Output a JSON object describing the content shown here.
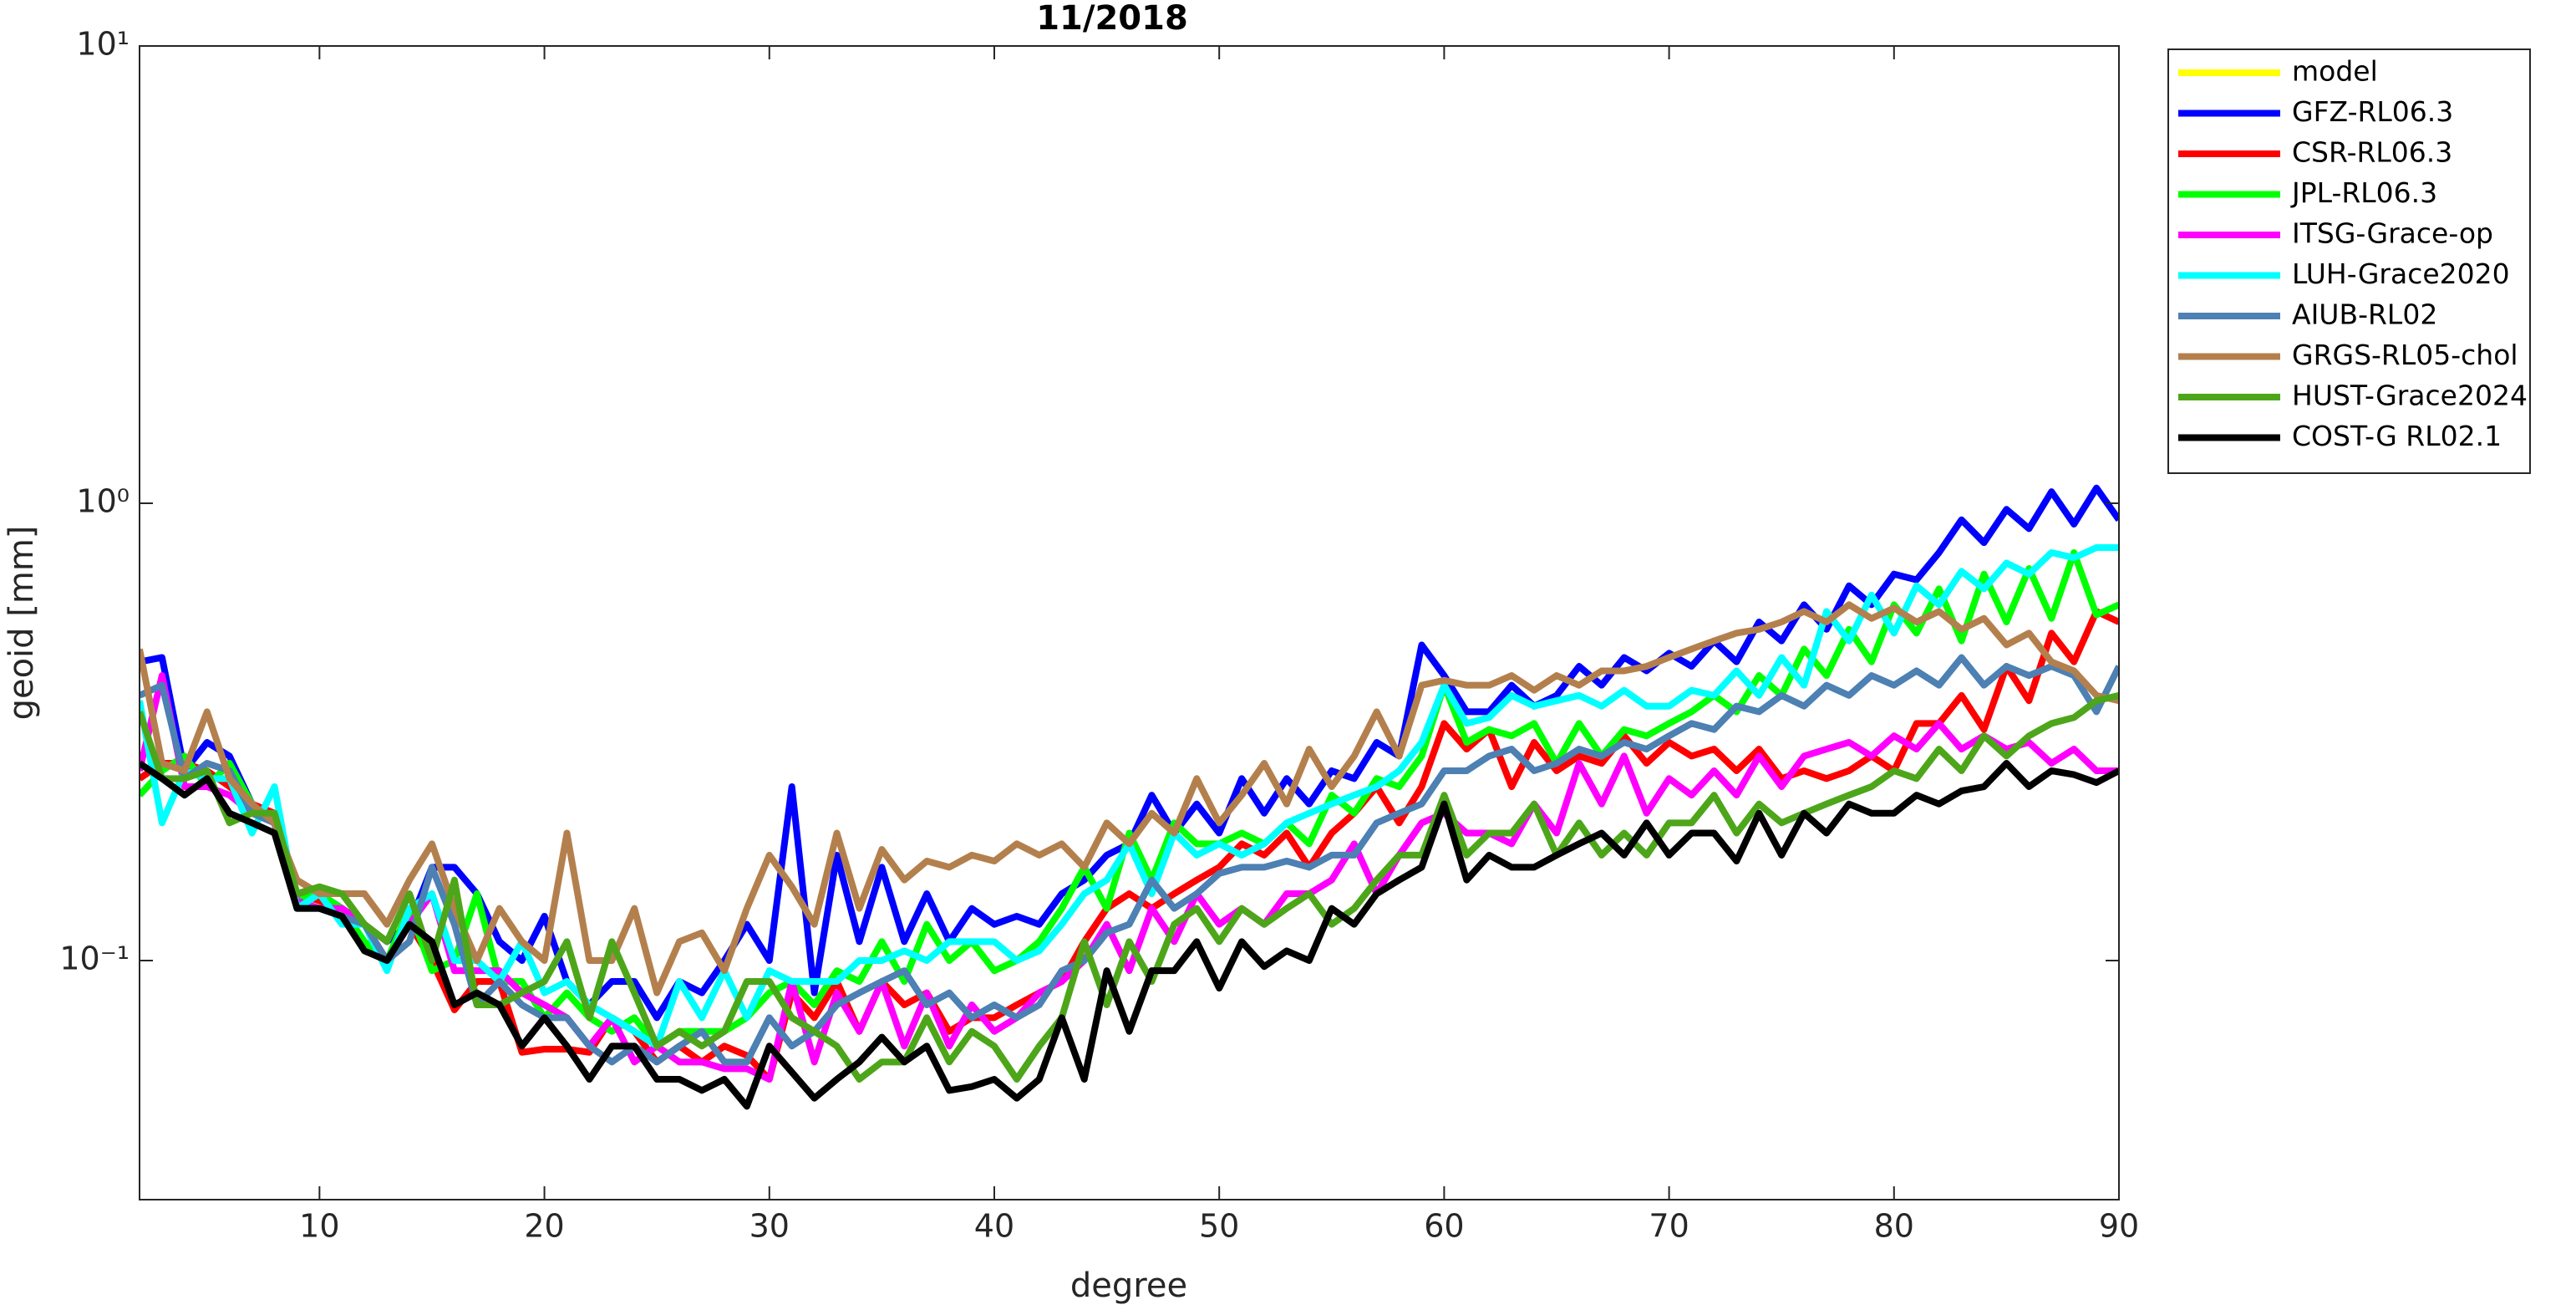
{
  "chart_data": {
    "type": "line",
    "title": "11/2018",
    "xlabel": "degree",
    "ylabel": "geoid [mm]",
    "ylog": true,
    "grid": false,
    "legend": "outside-right",
    "xlim": [
      2,
      90
    ],
    "xticks": [
      10,
      20,
      30,
      40,
      50,
      60,
      70,
      80,
      90
    ],
    "ylim": [
      0.03,
      10
    ],
    "yticks": [
      {
        "value": 0.1,
        "label": "10⁻¹"
      },
      {
        "value": 1,
        "label": "10⁰"
      },
      {
        "value": 10,
        "label": "10¹"
      }
    ],
    "x": [
      2,
      3,
      4,
      5,
      6,
      7,
      8,
      9,
      10,
      11,
      12,
      13,
      14,
      15,
      16,
      17,
      18,
      19,
      20,
      21,
      22,
      23,
      24,
      25,
      26,
      27,
      28,
      29,
      30,
      31,
      32,
      33,
      34,
      35,
      36,
      37,
      38,
      39,
      40,
      41,
      42,
      43,
      44,
      45,
      46,
      47,
      48,
      49,
      50,
      51,
      52,
      53,
      54,
      55,
      56,
      57,
      58,
      59,
      60,
      61,
      62,
      63,
      64,
      65,
      66,
      67,
      68,
      69,
      70,
      71,
      72,
      73,
      74,
      75,
      76,
      77,
      78,
      79,
      80,
      81,
      82,
      83,
      84,
      85,
      86,
      87,
      88,
      89,
      90
    ],
    "series": [
      {
        "name": "model",
        "color": "#ffff00",
        "values": [
          null,
          null,
          null,
          null,
          null,
          null,
          null,
          null,
          null,
          null,
          null,
          null,
          null,
          null,
          null,
          null,
          null,
          null,
          null,
          null,
          null,
          null,
          null,
          null,
          null,
          null,
          null,
          null,
          null,
          null,
          null,
          null,
          null,
          null,
          null,
          null,
          null,
          null,
          null,
          null,
          null,
          null,
          null,
          null,
          null,
          null,
          null,
          null,
          null,
          null,
          null,
          null,
          null,
          null,
          null,
          null,
          null,
          null,
          null,
          null,
          null,
          null,
          null,
          null,
          null,
          null,
          null,
          null,
          null,
          null,
          null,
          null,
          null,
          null,
          null,
          null,
          null,
          null,
          null,
          null,
          null,
          null,
          null,
          null,
          null,
          null,
          null,
          null,
          null
        ]
      },
      {
        "name": "GFZ-RL06.3",
        "color": "#0000ff",
        "values": [
          0.45,
          0.46,
          0.26,
          0.3,
          0.28,
          0.22,
          0.2,
          0.135,
          0.14,
          0.13,
          0.12,
          0.11,
          0.12,
          0.16,
          0.16,
          0.14,
          0.11,
          0.1,
          0.125,
          0.09,
          0.08,
          0.09,
          0.09,
          0.075,
          0.09,
          0.085,
          0.1,
          0.12,
          0.1,
          0.24,
          0.085,
          0.17,
          0.11,
          0.16,
          0.11,
          0.14,
          0.11,
          0.13,
          0.12,
          0.125,
          0.12,
          0.14,
          0.15,
          0.17,
          0.18,
          0.23,
          0.19,
          0.22,
          0.19,
          0.25,
          0.21,
          0.25,
          0.22,
          0.26,
          0.25,
          0.3,
          0.28,
          0.49,
          0.42,
          0.35,
          0.35,
          0.4,
          0.36,
          0.38,
          0.44,
          0.4,
          0.46,
          0.43,
          0.47,
          0.44,
          0.5,
          0.45,
          0.55,
          0.5,
          0.6,
          0.53,
          0.66,
          0.6,
          0.7,
          0.68,
          0.78,
          0.92,
          0.82,
          0.97,
          0.88,
          1.06,
          0.9,
          1.08,
          0.92
        ]
      },
      {
        "name": "CSR-RL06.3",
        "color": "#ff0000",
        "values": [
          0.25,
          0.27,
          0.27,
          0.26,
          0.24,
          0.22,
          0.21,
          0.14,
          0.135,
          0.13,
          0.12,
          0.1,
          0.12,
          0.1,
          0.078,
          0.09,
          0.09,
          0.063,
          0.064,
          0.064,
          0.063,
          0.075,
          0.07,
          0.06,
          0.065,
          0.06,
          0.065,
          0.062,
          0.055,
          0.085,
          0.075,
          0.09,
          0.07,
          0.09,
          0.08,
          0.085,
          0.07,
          0.075,
          0.075,
          0.08,
          0.085,
          0.09,
          0.11,
          0.13,
          0.14,
          0.13,
          0.14,
          0.15,
          0.16,
          0.18,
          0.17,
          0.19,
          0.16,
          0.19,
          0.21,
          0.24,
          0.2,
          0.24,
          0.33,
          0.29,
          0.32,
          0.24,
          0.3,
          0.26,
          0.28,
          0.27,
          0.31,
          0.27,
          0.3,
          0.28,
          0.29,
          0.26,
          0.29,
          0.25,
          0.26,
          0.25,
          0.26,
          0.28,
          0.26,
          0.33,
          0.33,
          0.38,
          0.32,
          0.44,
          0.37,
          0.52,
          0.45,
          0.58,
          0.55
        ]
      },
      {
        "name": "JPL-RL06.3",
        "color": "#00ff00",
        "values": [
          0.23,
          0.26,
          0.28,
          0.24,
          0.27,
          0.22,
          0.2,
          0.135,
          0.14,
          0.13,
          0.11,
          0.1,
          0.13,
          0.095,
          0.1,
          0.14,
          0.09,
          0.09,
          0.075,
          0.085,
          0.075,
          0.07,
          0.075,
          0.065,
          0.07,
          0.07,
          0.07,
          0.075,
          0.085,
          0.09,
          0.08,
          0.095,
          0.09,
          0.11,
          0.09,
          0.12,
          0.1,
          0.11,
          0.095,
          0.1,
          0.11,
          0.13,
          0.16,
          0.13,
          0.19,
          0.15,
          0.2,
          0.18,
          0.18,
          0.19,
          0.18,
          0.2,
          0.18,
          0.23,
          0.21,
          0.25,
          0.24,
          0.28,
          0.4,
          0.3,
          0.32,
          0.31,
          0.33,
          0.27,
          0.33,
          0.28,
          0.32,
          0.31,
          0.33,
          0.35,
          0.38,
          0.35,
          0.42,
          0.38,
          0.48,
          0.42,
          0.53,
          0.45,
          0.6,
          0.52,
          0.65,
          0.5,
          0.7,
          0.55,
          0.72,
          0.56,
          0.78,
          0.57,
          0.6
        ]
      },
      {
        "name": "ITSG-Grace-op",
        "color": "#ff00ff",
        "values": [
          0.26,
          0.42,
          0.24,
          0.24,
          0.23,
          0.21,
          0.2,
          0.135,
          0.13,
          0.13,
          0.12,
          0.1,
          0.12,
          0.14,
          0.095,
          0.095,
          0.095,
          0.085,
          0.08,
          0.075,
          0.065,
          0.075,
          0.06,
          0.065,
          0.06,
          0.06,
          0.058,
          0.058,
          0.055,
          0.09,
          0.06,
          0.085,
          0.07,
          0.09,
          0.065,
          0.085,
          0.065,
          0.08,
          0.07,
          0.075,
          0.085,
          0.09,
          0.1,
          0.12,
          0.095,
          0.13,
          0.11,
          0.14,
          0.12,
          0.13,
          0.12,
          0.14,
          0.14,
          0.15,
          0.18,
          0.14,
          0.17,
          0.2,
          0.21,
          0.19,
          0.19,
          0.18,
          0.22,
          0.19,
          0.27,
          0.22,
          0.28,
          0.21,
          0.25,
          0.23,
          0.26,
          0.23,
          0.28,
          0.24,
          0.28,
          0.29,
          0.3,
          0.28,
          0.31,
          0.29,
          0.33,
          0.29,
          0.31,
          0.29,
          0.3,
          0.27,
          0.29,
          0.26,
          0.26
        ]
      },
      {
        "name": "LUH-Grace2020",
        "color": "#00ffff",
        "values": [
          0.37,
          0.2,
          0.26,
          0.25,
          0.25,
          0.19,
          0.24,
          0.13,
          0.14,
          0.12,
          0.12,
          0.095,
          0.13,
          0.14,
          0.1,
          0.1,
          0.09,
          0.11,
          0.085,
          0.09,
          0.08,
          0.075,
          0.07,
          0.065,
          0.09,
          0.075,
          0.095,
          0.075,
          0.095,
          0.09,
          0.09,
          0.09,
          0.1,
          0.1,
          0.105,
          0.1,
          0.11,
          0.11,
          0.11,
          0.1,
          0.105,
          0.12,
          0.14,
          0.15,
          0.18,
          0.14,
          0.19,
          0.17,
          0.18,
          0.17,
          0.18,
          0.2,
          0.21,
          0.22,
          0.23,
          0.24,
          0.26,
          0.3,
          0.4,
          0.33,
          0.34,
          0.38,
          0.36,
          0.37,
          0.38,
          0.36,
          0.39,
          0.36,
          0.36,
          0.39,
          0.38,
          0.43,
          0.38,
          0.46,
          0.4,
          0.58,
          0.5,
          0.63,
          0.52,
          0.66,
          0.6,
          0.71,
          0.65,
          0.74,
          0.7,
          0.78,
          0.76,
          0.8,
          0.8
        ]
      },
      {
        "name": "AIUB-RL02",
        "color": "#4d80b3",
        "values": [
          0.38,
          0.4,
          0.25,
          0.27,
          0.26,
          0.21,
          0.2,
          0.13,
          0.13,
          0.125,
          0.12,
          0.1,
          0.11,
          0.16,
          0.12,
          0.08,
          0.09,
          0.08,
          0.075,
          0.075,
          0.065,
          0.06,
          0.065,
          0.06,
          0.065,
          0.07,
          0.06,
          0.06,
          0.075,
          0.065,
          0.07,
          0.08,
          0.085,
          0.09,
          0.095,
          0.08,
          0.085,
          0.075,
          0.08,
          0.075,
          0.08,
          0.095,
          0.1,
          0.115,
          0.12,
          0.15,
          0.13,
          0.14,
          0.155,
          0.16,
          0.16,
          0.165,
          0.16,
          0.17,
          0.17,
          0.2,
          0.21,
          0.22,
          0.26,
          0.26,
          0.28,
          0.29,
          0.26,
          0.27,
          0.29,
          0.28,
          0.3,
          0.29,
          0.31,
          0.33,
          0.32,
          0.36,
          0.35,
          0.38,
          0.36,
          0.4,
          0.38,
          0.42,
          0.4,
          0.43,
          0.4,
          0.46,
          0.4,
          0.44,
          0.42,
          0.44,
          0.42,
          0.35,
          0.44
        ]
      },
      {
        "name": "GRGS-RL05-chol",
        "color": "#b3804d",
        "values": [
          0.48,
          0.27,
          0.26,
          0.35,
          0.25,
          0.22,
          0.2,
          0.15,
          0.14,
          0.14,
          0.14,
          0.12,
          0.15,
          0.18,
          0.13,
          0.1,
          0.13,
          0.11,
          0.1,
          0.19,
          0.1,
          0.1,
          0.13,
          0.085,
          0.11,
          0.115,
          0.095,
          0.13,
          0.17,
          0.145,
          0.12,
          0.19,
          0.13,
          0.175,
          0.15,
          0.165,
          0.16,
          0.17,
          0.165,
          0.18,
          0.17,
          0.18,
          0.16,
          0.2,
          0.18,
          0.21,
          0.19,
          0.25,
          0.2,
          0.23,
          0.27,
          0.22,
          0.29,
          0.24,
          0.28,
          0.35,
          0.28,
          0.4,
          0.41,
          0.4,
          0.4,
          0.42,
          0.39,
          0.42,
          0.4,
          0.43,
          0.43,
          0.44,
          0.46,
          0.48,
          0.5,
          0.52,
          0.53,
          0.55,
          0.58,
          0.55,
          0.6,
          0.56,
          0.59,
          0.55,
          0.58,
          0.53,
          0.56,
          0.49,
          0.52,
          0.45,
          0.43,
          0.38,
          0.37
        ]
      },
      {
        "name": "HUST-Grace2024",
        "color": "#4da61a",
        "values": [
          0.35,
          0.25,
          0.25,
          0.26,
          0.2,
          0.21,
          0.21,
          0.14,
          0.145,
          0.14,
          0.12,
          0.11,
          0.14,
          0.1,
          0.15,
          0.08,
          0.08,
          0.085,
          0.09,
          0.11,
          0.075,
          0.11,
          0.085,
          0.065,
          0.07,
          0.065,
          0.07,
          0.09,
          0.09,
          0.075,
          0.07,
          0.065,
          0.055,
          0.06,
          0.06,
          0.075,
          0.06,
          0.07,
          0.065,
          0.055,
          0.065,
          0.075,
          0.11,
          0.08,
          0.11,
          0.09,
          0.12,
          0.13,
          0.11,
          0.13,
          0.12,
          0.13,
          0.14,
          0.12,
          0.13,
          0.15,
          0.17,
          0.17,
          0.23,
          0.17,
          0.19,
          0.19,
          0.22,
          0.17,
          0.2,
          0.17,
          0.19,
          0.17,
          0.2,
          0.2,
          0.23,
          0.19,
          0.22,
          0.2,
          0.21,
          0.22,
          0.23,
          0.24,
          0.26,
          0.25,
          0.29,
          0.26,
          0.31,
          0.28,
          0.31,
          0.33,
          0.34,
          0.37,
          0.38
        ]
      },
      {
        "name": "COST-G RL02.1",
        "color": "#000000",
        "values": [
          0.27,
          0.25,
          0.23,
          0.25,
          0.21,
          0.2,
          0.19,
          0.13,
          0.13,
          0.125,
          0.105,
          0.1,
          0.12,
          0.11,
          0.08,
          0.085,
          0.08,
          0.065,
          0.075,
          0.065,
          0.055,
          0.065,
          0.065,
          0.055,
          0.055,
          0.052,
          0.055,
          0.048,
          0.065,
          0.057,
          0.05,
          0.055,
          0.06,
          0.068,
          0.06,
          0.065,
          0.052,
          0.053,
          0.055,
          0.05,
          0.055,
          0.075,
          0.055,
          0.095,
          0.07,
          0.095,
          0.095,
          0.11,
          0.087,
          0.11,
          0.097,
          0.105,
          0.1,
          0.13,
          0.12,
          0.14,
          0.15,
          0.16,
          0.22,
          0.15,
          0.17,
          0.16,
          0.16,
          0.17,
          0.18,
          0.19,
          0.17,
          0.2,
          0.17,
          0.19,
          0.19,
          0.165,
          0.21,
          0.17,
          0.21,
          0.19,
          0.22,
          0.21,
          0.21,
          0.23,
          0.22,
          0.235,
          0.24,
          0.27,
          0.24,
          0.26,
          0.255,
          0.245,
          0.26
        ]
      }
    ]
  }
}
